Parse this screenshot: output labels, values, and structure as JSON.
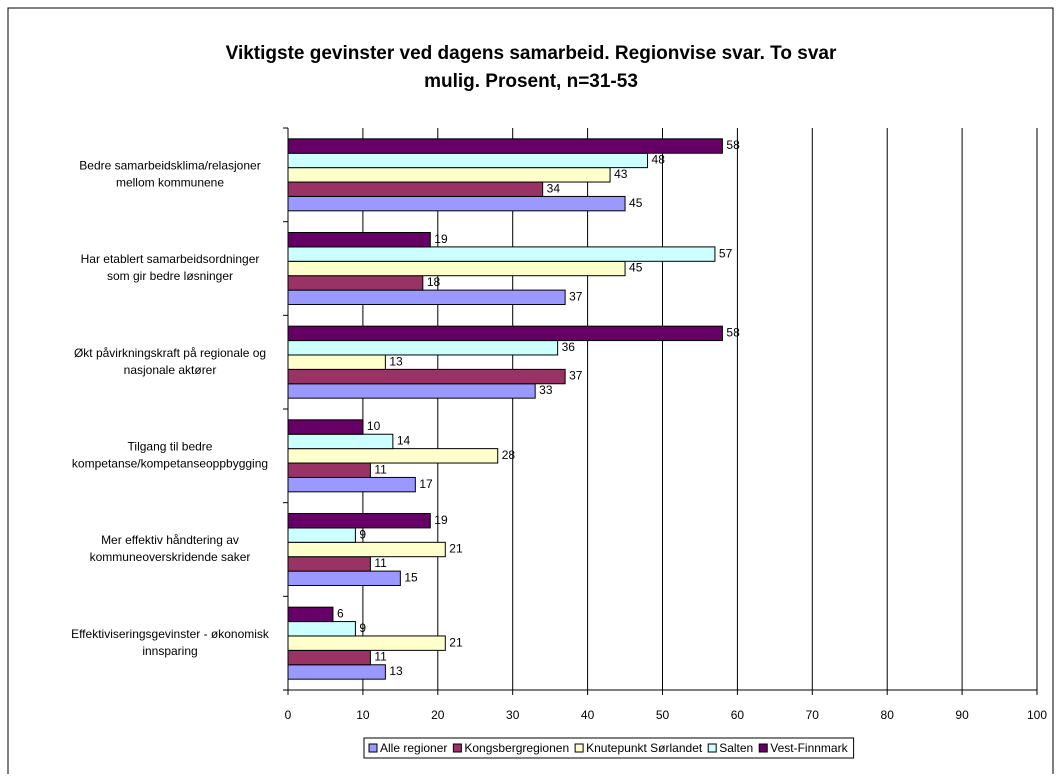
{
  "chart_data": {
    "type": "barh",
    "title": [
      "Viktigste gevinster ved dagens samarbeid. Regionvise svar. To svar",
      "mulig. Prosent, n=31-53"
    ],
    "categories": [
      [
        "Bedre samarbeidsklima/relasjoner",
        "mellom kommunene"
      ],
      [
        "Har etablert samarbeidsordninger",
        "som gir bedre løsninger"
      ],
      [
        "Økt påvirkningskraft på regionale og",
        "nasjonale aktører"
      ],
      [
        "Tilgang til bedre",
        "kompetanse/kompetanseoppbygging"
      ],
      [
        "Mer effektiv håndtering av",
        "kommuneoverskridende saker"
      ],
      [
        "Effektiviseringsgevinster - økonomisk",
        "innsparing"
      ]
    ],
    "series": [
      {
        "name": "Alle regioner",
        "color": "#9999ff",
        "values": [
          45,
          37,
          33,
          17,
          15,
          13
        ]
      },
      {
        "name": "Kongsbergregionen",
        "color": "#993366",
        "values": [
          34,
          18,
          37,
          11,
          11,
          11
        ]
      },
      {
        "name": "Knutepunkt Sørlandet",
        "color": "#ffffcc",
        "values": [
          43,
          45,
          13,
          28,
          21,
          21
        ]
      },
      {
        "name": "Salten",
        "color": "#ccffff",
        "values": [
          48,
          57,
          36,
          14,
          9,
          9
        ]
      },
      {
        "name": "Vest-Finnmark",
        "color": "#660066",
        "values": [
          58,
          19,
          58,
          10,
          19,
          6
        ]
      }
    ],
    "xlim": [
      0,
      100
    ],
    "xticks": [
      0,
      10,
      20,
      30,
      40,
      50,
      60,
      70,
      80,
      90,
      100
    ],
    "grid": true,
    "legend": "bottom"
  }
}
